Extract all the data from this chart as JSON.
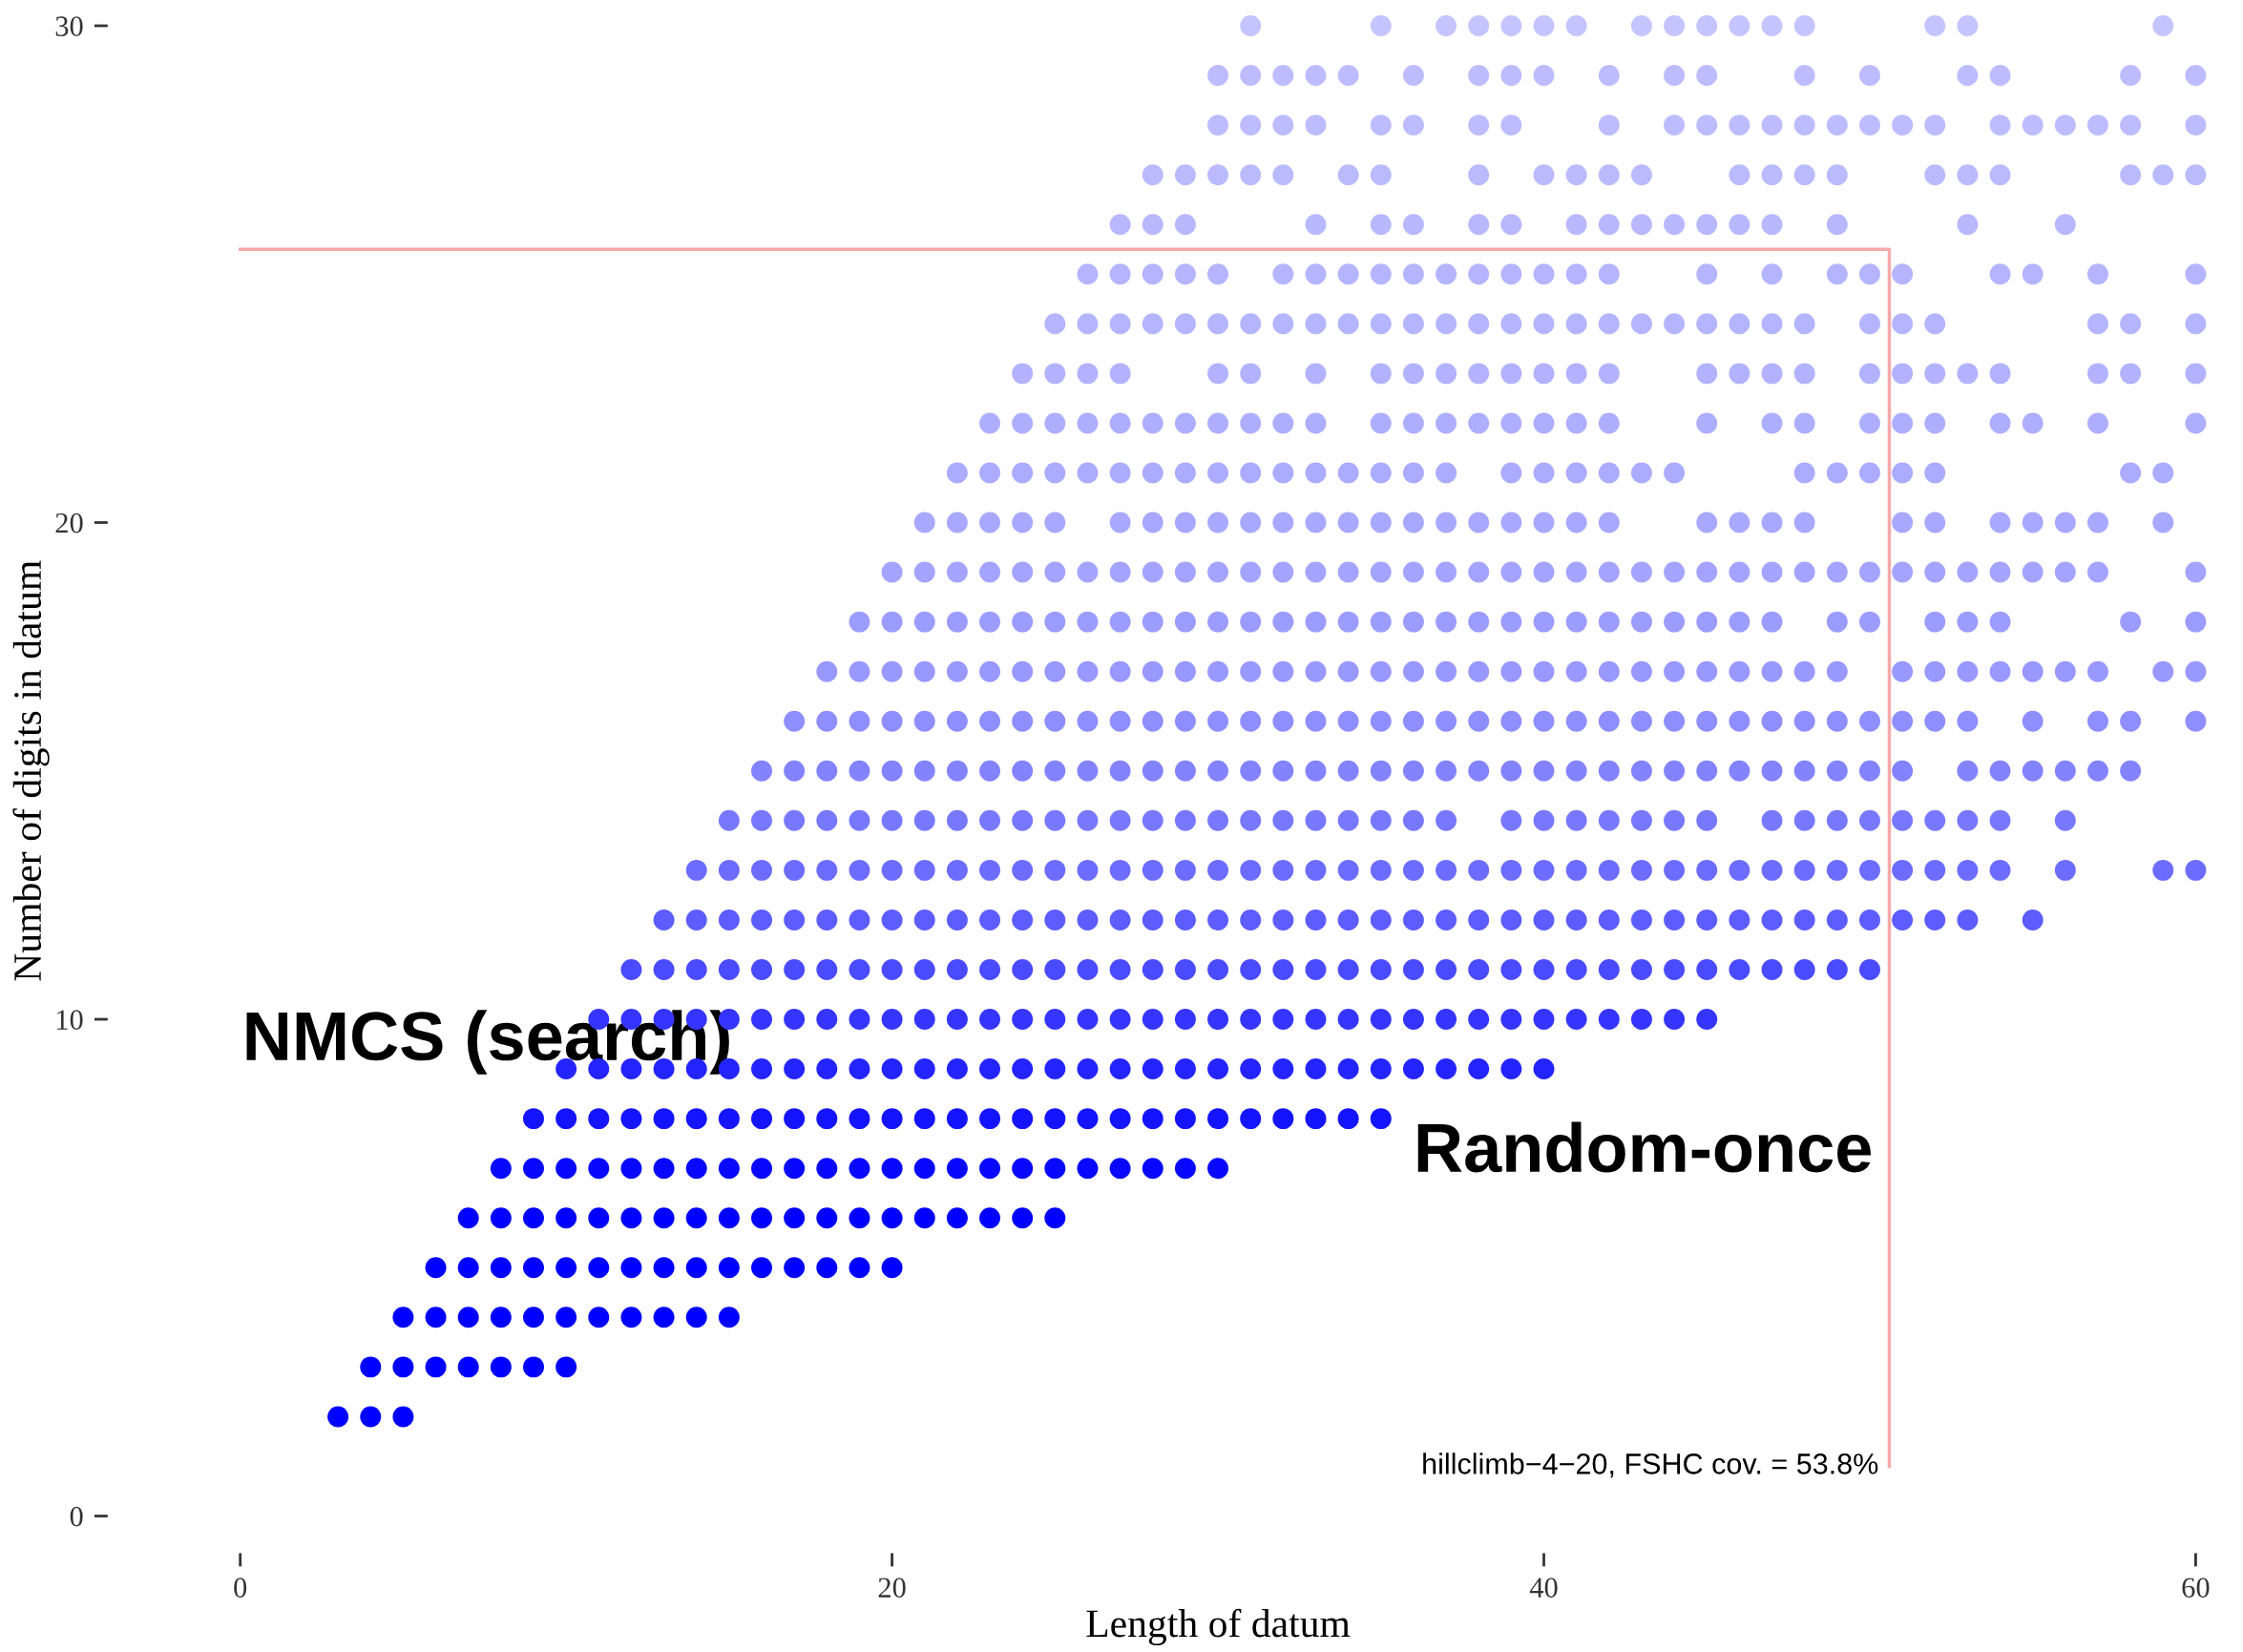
{
  "chart_data": {
    "type": "scatter",
    "xlabel": "Length of datum",
    "ylabel": "Number of digits in datum",
    "xlim": [
      0,
      60
    ],
    "ylim": [
      0,
      30
    ],
    "xticks": [
      0,
      20,
      40,
      60
    ],
    "yticks": [
      0,
      10,
      20,
      30
    ],
    "grid": false,
    "marker": "circle",
    "annotations": [
      "NMCS (search)",
      "Random-once",
      {
        "text": "hillclimb−4−20, FSHC cov. = 53.8%",
        "x": 50.6,
        "y": 1
      }
    ],
    "series": [
      {
        "color": "#f5a9ab",
        "type": "line",
        "marker": "none",
        "x": [
          0,
          50.6,
          50.6
        ],
        "values": [
          25.5,
          25.5,
          1
        ]
      },
      {
        "color": "#0000ff",
        "x": [
          3,
          4,
          5
        ],
        "values": [
          2,
          2,
          2
        ]
      },
      {
        "color": "#0000ff",
        "x": [
          4,
          5,
          6,
          7,
          8,
          9,
          10
        ],
        "values": [
          3,
          3,
          3,
          3,
          3,
          3,
          3
        ]
      },
      {
        "color": "#0000ff",
        "x": [
          5,
          6,
          7,
          8,
          9,
          10,
          11,
          12,
          13,
          14,
          15
        ],
        "values": [
          4,
          4,
          4,
          4,
          4,
          4,
          4,
          4,
          4,
          4,
          4
        ]
      },
      {
        "color": "#0000ff",
        "x": [
          6,
          7,
          8,
          9,
          10,
          11,
          12,
          13,
          14,
          15,
          16,
          17,
          18,
          19,
          20
        ],
        "values": [
          5,
          5,
          5,
          5,
          5,
          5,
          5,
          5,
          5,
          5,
          5,
          5,
          5,
          5,
          5
        ]
      },
      {
        "color": "#0000ff",
        "x": [
          7,
          8,
          9,
          10,
          11,
          12,
          13,
          14,
          15,
          16,
          17,
          18,
          19,
          20,
          21,
          22,
          23,
          24,
          25
        ],
        "values": [
          6,
          6,
          6,
          6,
          6,
          6,
          6,
          6,
          6,
          6,
          6,
          6,
          6,
          6,
          6,
          6,
          6,
          6,
          6
        ]
      },
      {
        "color": "#0808ff",
        "x": [
          8,
          9,
          10,
          11,
          12,
          13,
          14,
          15,
          16,
          17,
          18,
          19,
          20,
          21,
          22,
          23,
          24,
          25,
          26,
          27,
          28,
          29,
          30
        ],
        "values": [
          7,
          7,
          7,
          7,
          7,
          7,
          7,
          7,
          7,
          7,
          7,
          7,
          7,
          7,
          7,
          7,
          7,
          7,
          7,
          7,
          7,
          7,
          7
        ]
      },
      {
        "color": "#1414ff",
        "x": [
          9,
          10,
          11,
          12,
          13,
          14,
          15,
          16,
          17,
          18,
          19,
          20,
          21,
          22,
          23,
          24,
          25,
          26,
          27,
          28,
          29,
          30,
          31,
          32,
          33,
          34,
          35
        ],
        "values": [
          8,
          8,
          8,
          8,
          8,
          8,
          8,
          8,
          8,
          8,
          8,
          8,
          8,
          8,
          8,
          8,
          8,
          8,
          8,
          8,
          8,
          8,
          8,
          8,
          8,
          8,
          8
        ]
      },
      {
        "color": "#2424ff",
        "x": [
          10,
          11,
          12,
          13,
          14,
          15,
          16,
          17,
          18,
          19,
          20,
          21,
          22,
          23,
          24,
          25,
          26,
          27,
          28,
          29,
          30,
          31,
          32,
          33,
          34,
          35,
          36,
          37,
          38,
          39,
          40
        ],
        "values": [
          9,
          9,
          9,
          9,
          9,
          9,
          9,
          9,
          9,
          9,
          9,
          9,
          9,
          9,
          9,
          9,
          9,
          9,
          9,
          9,
          9,
          9,
          9,
          9,
          9,
          9,
          9,
          9,
          9,
          9,
          9
        ]
      },
      {
        "color": "#3535ff",
        "x": [
          11,
          12,
          13,
          14,
          15,
          16,
          17,
          18,
          19,
          20,
          21,
          22,
          23,
          24,
          25,
          26,
          27,
          28,
          29,
          30,
          31,
          32,
          33,
          34,
          35,
          36,
          37,
          38,
          39,
          40,
          41,
          42,
          43,
          44,
          45
        ],
        "values": [
          10,
          10,
          10,
          10,
          10,
          10,
          10,
          10,
          10,
          10,
          10,
          10,
          10,
          10,
          10,
          10,
          10,
          10,
          10,
          10,
          10,
          10,
          10,
          10,
          10,
          10,
          10,
          10,
          10,
          10,
          10,
          10,
          10,
          10,
          10
        ]
      },
      {
        "color": "#4a4aff",
        "x": [
          12,
          13,
          14,
          15,
          16,
          17,
          18,
          19,
          20,
          21,
          22,
          23,
          24,
          25,
          26,
          27,
          28,
          29,
          30,
          31,
          32,
          33,
          34,
          35,
          36,
          37,
          38,
          39,
          40,
          41,
          42,
          43,
          44,
          45,
          46,
          47,
          48,
          49,
          50
        ],
        "values": [
          11,
          11,
          11,
          11,
          11,
          11,
          11,
          11,
          11,
          11,
          11,
          11,
          11,
          11,
          11,
          11,
          11,
          11,
          11,
          11,
          11,
          11,
          11,
          11,
          11,
          11,
          11,
          11,
          11,
          11,
          11,
          11,
          11,
          11,
          11,
          11,
          11,
          11,
          11
        ]
      },
      {
        "color": "#5c5cff",
        "x": [
          13,
          14,
          15,
          16,
          17,
          18,
          19,
          20,
          21,
          22,
          23,
          24,
          25,
          26,
          27,
          28,
          29,
          30,
          31,
          32,
          33,
          34,
          35,
          36,
          37,
          38,
          39,
          40,
          41,
          42,
          43,
          44,
          45,
          46,
          47,
          48,
          49,
          50,
          51,
          52,
          53,
          55
        ],
        "values": [
          12,
          12,
          12,
          12,
          12,
          12,
          12,
          12,
          12,
          12,
          12,
          12,
          12,
          12,
          12,
          12,
          12,
          12,
          12,
          12,
          12,
          12,
          12,
          12,
          12,
          12,
          12,
          12,
          12,
          12,
          12,
          12,
          12,
          12,
          12,
          12,
          12,
          12,
          12,
          12,
          12,
          12
        ]
      },
      {
        "color": "#6c6cff",
        "x": [
          14,
          15,
          16,
          17,
          18,
          19,
          20,
          21,
          22,
          23,
          24,
          25,
          26,
          27,
          28,
          29,
          30,
          31,
          32,
          33,
          34,
          35,
          36,
          37,
          38,
          39,
          40,
          41,
          42,
          43,
          44,
          45,
          46,
          47,
          48,
          49,
          50,
          51,
          52,
          53,
          54,
          56,
          59,
          60
        ],
        "values": [
          13,
          13,
          13,
          13,
          13,
          13,
          13,
          13,
          13,
          13,
          13,
          13,
          13,
          13,
          13,
          13,
          13,
          13,
          13,
          13,
          13,
          13,
          13,
          13,
          13,
          13,
          13,
          13,
          13,
          13,
          13,
          13,
          13,
          13,
          13,
          13,
          13,
          13,
          13,
          13,
          13,
          13,
          13,
          13
        ]
      },
      {
        "color": "#7878ff",
        "x": [
          15,
          16,
          17,
          18,
          19,
          20,
          21,
          22,
          23,
          24,
          25,
          26,
          27,
          28,
          29,
          30,
          31,
          32,
          33,
          34,
          35,
          36,
          37,
          39,
          40,
          41,
          42,
          43,
          44,
          45,
          47,
          48,
          49,
          50,
          51,
          52,
          53,
          54,
          56
        ],
        "values": [
          14,
          14,
          14,
          14,
          14,
          14,
          14,
          14,
          14,
          14,
          14,
          14,
          14,
          14,
          14,
          14,
          14,
          14,
          14,
          14,
          14,
          14,
          14,
          14,
          14,
          14,
          14,
          14,
          14,
          14,
          14,
          14,
          14,
          14,
          14,
          14,
          14,
          14,
          14
        ]
      },
      {
        "color": "#8383ff",
        "x": [
          16,
          17,
          18,
          19,
          20,
          21,
          22,
          23,
          24,
          25,
          26,
          27,
          28,
          29,
          30,
          31,
          32,
          33,
          34,
          35,
          36,
          37,
          38,
          39,
          40,
          41,
          42,
          43,
          44,
          45,
          46,
          47,
          48,
          49,
          50,
          51,
          53,
          54,
          55,
          56,
          57,
          58
        ],
        "values": [
          15,
          15,
          15,
          15,
          15,
          15,
          15,
          15,
          15,
          15,
          15,
          15,
          15,
          15,
          15,
          15,
          15,
          15,
          15,
          15,
          15,
          15,
          15,
          15,
          15,
          15,
          15,
          15,
          15,
          15,
          15,
          15,
          15,
          15,
          15,
          15,
          15,
          15,
          15,
          15,
          15,
          15
        ]
      },
      {
        "color": "#8e8eff",
        "x": [
          17,
          18,
          19,
          20,
          21,
          22,
          23,
          24,
          25,
          26,
          27,
          28,
          29,
          30,
          31,
          32,
          33,
          34,
          35,
          36,
          37,
          38,
          39,
          40,
          41,
          42,
          43,
          44,
          45,
          46,
          47,
          48,
          49,
          50,
          51,
          52,
          53,
          55,
          57,
          58,
          60
        ],
        "values": [
          16,
          16,
          16,
          16,
          16,
          16,
          16,
          16,
          16,
          16,
          16,
          16,
          16,
          16,
          16,
          16,
          16,
          16,
          16,
          16,
          16,
          16,
          16,
          16,
          16,
          16,
          16,
          16,
          16,
          16,
          16,
          16,
          16,
          16,
          16,
          16,
          16,
          16,
          16,
          16,
          16
        ]
      },
      {
        "color": "#9898ff",
        "x": [
          18,
          19,
          20,
          21,
          22,
          23,
          24,
          25,
          26,
          27,
          28,
          29,
          30,
          31,
          32,
          33,
          34,
          35,
          36,
          37,
          38,
          39,
          40,
          41,
          42,
          43,
          44,
          45,
          46,
          47,
          48,
          49,
          51,
          52,
          53,
          54,
          55,
          56,
          57,
          59,
          60
        ],
        "values": [
          17,
          17,
          17,
          17,
          17,
          17,
          17,
          17,
          17,
          17,
          17,
          17,
          17,
          17,
          17,
          17,
          17,
          17,
          17,
          17,
          17,
          17,
          17,
          17,
          17,
          17,
          17,
          17,
          17,
          17,
          17,
          17,
          17,
          17,
          17,
          17,
          17,
          17,
          17,
          17,
          17
        ]
      },
      {
        "color": "#9c9cff",
        "x": [
          19,
          20,
          21,
          22,
          23,
          24,
          25,
          26,
          27,
          28,
          29,
          30,
          31,
          32,
          33,
          34,
          35,
          36,
          37,
          38,
          39,
          40,
          41,
          42,
          43,
          44,
          45,
          46,
          47,
          49,
          50,
          52,
          53,
          54,
          58,
          60
        ],
        "values": [
          18,
          18,
          18,
          18,
          18,
          18,
          18,
          18,
          18,
          18,
          18,
          18,
          18,
          18,
          18,
          18,
          18,
          18,
          18,
          18,
          18,
          18,
          18,
          18,
          18,
          18,
          18,
          18,
          18,
          18,
          18,
          18,
          18,
          18,
          18,
          18
        ]
      },
      {
        "color": "#a4a4ff",
        "x": [
          20,
          21,
          22,
          23,
          24,
          25,
          26,
          27,
          28,
          29,
          30,
          31,
          32,
          33,
          34,
          35,
          36,
          37,
          38,
          39,
          40,
          41,
          42,
          43,
          44,
          45,
          46,
          47,
          48,
          49,
          50,
          51,
          52,
          53,
          54,
          55,
          56,
          57,
          60
        ],
        "values": [
          19,
          19,
          19,
          19,
          19,
          19,
          19,
          19,
          19,
          19,
          19,
          19,
          19,
          19,
          19,
          19,
          19,
          19,
          19,
          19,
          19,
          19,
          19,
          19,
          19,
          19,
          19,
          19,
          19,
          19,
          19,
          19,
          19,
          19,
          19,
          19,
          19,
          19,
          19
        ]
      },
      {
        "color": "#a8a8ff",
        "x": [
          21,
          22,
          23,
          24,
          25,
          27,
          28,
          29,
          30,
          31,
          32,
          33,
          34,
          35,
          36,
          37,
          38,
          39,
          40,
          41,
          42,
          45,
          46,
          47,
          48,
          51,
          52,
          54,
          55,
          56,
          57,
          59
        ],
        "values": [
          20,
          20,
          20,
          20,
          20,
          20,
          20,
          20,
          20,
          20,
          20,
          20,
          20,
          20,
          20,
          20,
          20,
          20,
          20,
          20,
          20,
          20,
          20,
          20,
          20,
          20,
          20,
          20,
          20,
          20,
          20,
          20
        ]
      },
      {
        "color": "#ababff",
        "x": [
          22,
          23,
          24,
          25,
          26,
          27,
          28,
          29,
          30,
          31,
          32,
          33,
          34,
          35,
          36,
          37,
          39,
          40,
          41,
          42,
          43,
          44,
          48,
          49,
          50,
          51,
          52,
          58,
          59
        ],
        "values": [
          21,
          21,
          21,
          21,
          21,
          21,
          21,
          21,
          21,
          21,
          21,
          21,
          21,
          21,
          21,
          21,
          21,
          21,
          21,
          21,
          21,
          21,
          21,
          21,
          21,
          21,
          21,
          21,
          21
        ]
      },
      {
        "color": "#aeaeff",
        "x": [
          23,
          24,
          25,
          26,
          27,
          28,
          29,
          30,
          31,
          32,
          33,
          35,
          36,
          37,
          38,
          39,
          40,
          41,
          42,
          45,
          47,
          48,
          50,
          51,
          52,
          54,
          55,
          57,
          60
        ],
        "values": [
          22,
          22,
          22,
          22,
          22,
          22,
          22,
          22,
          22,
          22,
          22,
          22,
          22,
          22,
          22,
          22,
          22,
          22,
          22,
          22,
          22,
          22,
          22,
          22,
          22,
          22,
          22,
          22,
          22
        ]
      },
      {
        "color": "#b2b2ff",
        "x": [
          24,
          25,
          26,
          27,
          30,
          31,
          33,
          35,
          36,
          37,
          38,
          39,
          40,
          41,
          42,
          45,
          46,
          47,
          48,
          50,
          51,
          52,
          53,
          54,
          57,
          58,
          60
        ],
        "values": [
          23,
          23,
          23,
          23,
          23,
          23,
          23,
          23,
          23,
          23,
          23,
          23,
          23,
          23,
          23,
          23,
          23,
          23,
          23,
          23,
          23,
          23,
          23,
          23,
          23,
          23,
          23
        ]
      },
      {
        "color": "#b4b4ff",
        "x": [
          25,
          26,
          27,
          28,
          29,
          30,
          31,
          32,
          33,
          34,
          35,
          36,
          37,
          38,
          39,
          40,
          41,
          42,
          43,
          44,
          45,
          46,
          47,
          48,
          50,
          51,
          52,
          57,
          58,
          60
        ],
        "values": [
          24,
          24,
          24,
          24,
          24,
          24,
          24,
          24,
          24,
          24,
          24,
          24,
          24,
          24,
          24,
          24,
          24,
          24,
          24,
          24,
          24,
          24,
          24,
          24,
          24,
          24,
          24,
          24,
          24,
          24
        ]
      },
      {
        "color": "#b4b4ff",
        "x": [
          26,
          27,
          28,
          29,
          30,
          32,
          33,
          34,
          35,
          36,
          37,
          38,
          39,
          40,
          41,
          42,
          45,
          47,
          49,
          50,
          51,
          54,
          55,
          57,
          60
        ],
        "values": [
          25,
          25,
          25,
          25,
          25,
          25,
          25,
          25,
          25,
          25,
          25,
          25,
          25,
          25,
          25,
          25,
          25,
          25,
          25,
          25,
          25,
          25,
          25,
          25,
          25
        ]
      },
      {
        "color": "#b8b8ff",
        "x": [
          27,
          28,
          29,
          33,
          35,
          36,
          38,
          39,
          41,
          42,
          43,
          44,
          45,
          46,
          47,
          49,
          53,
          56
        ],
        "values": [
          26,
          26,
          26,
          26,
          26,
          26,
          26,
          26,
          26,
          26,
          26,
          26,
          26,
          26,
          26,
          26,
          26,
          26
        ]
      },
      {
        "color": "#babaff",
        "x": [
          28,
          29,
          30,
          31,
          32,
          34,
          35,
          38,
          40,
          41,
          42,
          43,
          46,
          47,
          48,
          49,
          52,
          53,
          54,
          58,
          59,
          60
        ],
        "values": [
          27,
          27,
          27,
          27,
          27,
          27,
          27,
          27,
          27,
          27,
          27,
          27,
          27,
          27,
          27,
          27,
          27,
          27,
          27,
          27,
          27,
          27
        ]
      },
      {
        "color": "#bcbcff",
        "x": [
          30,
          31,
          32,
          33,
          35,
          36,
          38,
          39,
          42,
          44,
          45,
          46,
          47,
          48,
          49,
          50,
          51,
          52,
          54,
          55,
          56,
          57,
          58,
          60
        ],
        "values": [
          28,
          28,
          28,
          28,
          28,
          28,
          28,
          28,
          28,
          28,
          28,
          28,
          28,
          28,
          28,
          28,
          28,
          28,
          28,
          28,
          28,
          28,
          28,
          28
        ]
      },
      {
        "color": "#bcbcff",
        "x": [
          30,
          31,
          32,
          33,
          34,
          36,
          38,
          39,
          40,
          42,
          44,
          45,
          48,
          50,
          53,
          54,
          58,
          60
        ],
        "values": [
          29,
          29,
          29,
          29,
          29,
          29,
          29,
          29,
          29,
          29,
          29,
          29,
          29,
          29,
          29,
          29,
          29,
          29
        ]
      },
      {
        "color": "#c4c4ff",
        "x": [
          31,
          35,
          37,
          38,
          39,
          40,
          41,
          43,
          44,
          45,
          46,
          47,
          48,
          52,
          53,
          59
        ],
        "values": [
          30,
          30,
          30,
          30,
          30,
          30,
          30,
          30,
          30,
          30,
          30,
          30,
          30,
          30,
          30,
          30
        ]
      }
    ]
  }
}
